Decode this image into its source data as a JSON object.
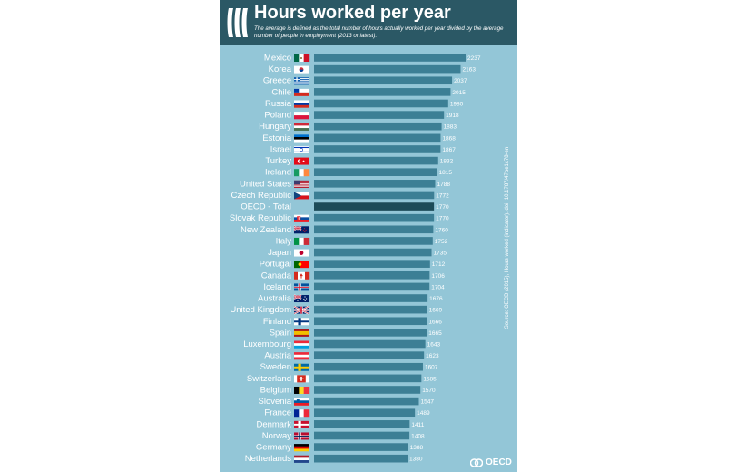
{
  "header": {
    "title": "Hours worked per year",
    "subtitle": "The average is defined as the total number of hours actually worked per year divided by the average number of people in employment (2013 or latest)."
  },
  "source": "Source: OECD (2015), Hours worked (indicator). doi: 10.1787/47be1c78-en",
  "logo": {
    "text": "OECD",
    "icon": "oecd-logo-icon"
  },
  "colors": {
    "panel": "#93c6d7",
    "header": "#2b5865",
    "bar": "#3c7f95",
    "highlight_bar": "#1d4b58"
  },
  "chart_data": {
    "type": "bar",
    "orientation": "horizontal",
    "highlight": "OECD - Total",
    "categories": [
      "Mexico",
      "Korea",
      "Greece",
      "Chile",
      "Russia",
      "Poland",
      "Hungary",
      "Estonia",
      "Israel",
      "Turkey",
      "Ireland",
      "United States",
      "Czech Republic",
      "OECD - Total",
      "Slovak Republic",
      "New Zealand",
      "Italy",
      "Japan",
      "Portugal",
      "Canada",
      "Iceland",
      "Australia",
      "United Kingdom",
      "Finland",
      "Spain",
      "Luxembourg",
      "Austria",
      "Sweden",
      "Switzerland",
      "Belgium",
      "Slovenia",
      "France",
      "Denmark",
      "Norway",
      "Germany",
      "Netherlands"
    ],
    "values": [
      2237,
      2163,
      2037,
      2015,
      1980,
      1918,
      1883,
      1868,
      1867,
      1832,
      1815,
      1788,
      1772,
      1770,
      1770,
      1760,
      1752,
      1735,
      1712,
      1706,
      1704,
      1676,
      1669,
      1666,
      1665,
      1643,
      1623,
      1607,
      1585,
      1570,
      1547,
      1489,
      1411,
      1408,
      1388,
      1380
    ],
    "flags": [
      "flag-mexico-icon",
      "flag-korea-icon",
      "flag-greece-icon",
      "flag-chile-icon",
      "flag-russia-icon",
      "flag-poland-icon",
      "flag-hungary-icon",
      "flag-estonia-icon",
      "flag-israel-icon",
      "flag-turkey-icon",
      "flag-ireland-icon",
      "flag-united-states-icon",
      "flag-czech-republic-icon",
      "",
      "flag-slovak-republic-icon",
      "flag-new-zealand-icon",
      "flag-italy-icon",
      "flag-japan-icon",
      "flag-portugal-icon",
      "flag-canada-icon",
      "flag-iceland-icon",
      "flag-australia-icon",
      "flag-united-kingdom-icon",
      "flag-finland-icon",
      "flag-spain-icon",
      "flag-luxembourg-icon",
      "flag-austria-icon",
      "flag-sweden-icon",
      "flag-switzerland-icon",
      "flag-belgium-icon",
      "flag-slovenia-icon",
      "flag-france-icon",
      "flag-denmark-icon",
      "flag-norway-icon",
      "flag-germany-icon",
      "flag-netherlands-icon"
    ],
    "xlim": [
      0,
      2237
    ],
    "xlabel": "",
    "ylabel": "",
    "grid": false,
    "legend": "none"
  }
}
